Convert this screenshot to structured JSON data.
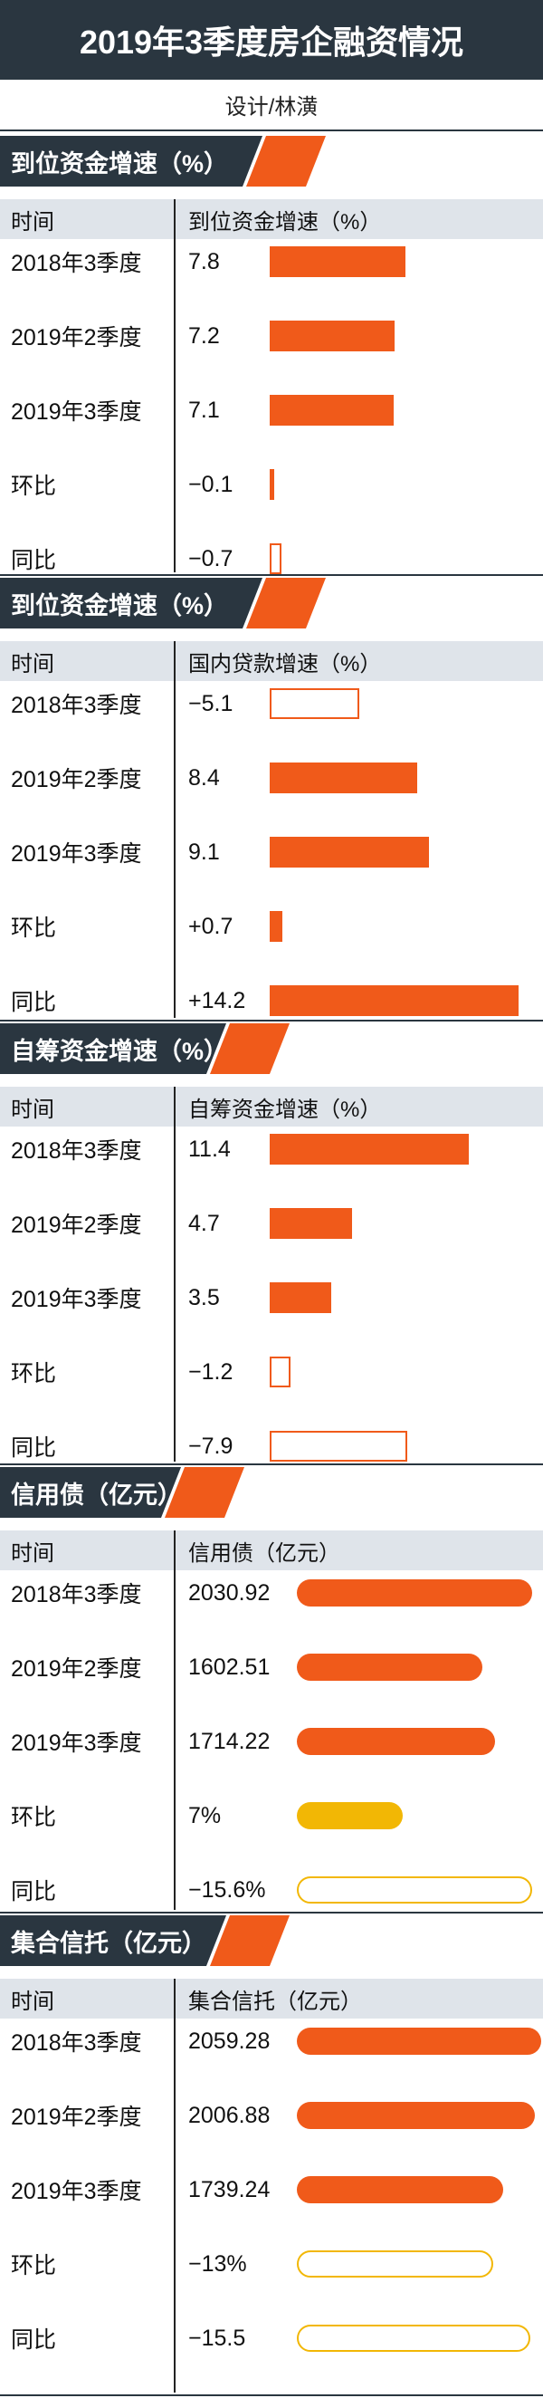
{
  "title": "2019年3季度房企融资情况",
  "designer": "设计/林潢",
  "colors": {
    "header_dark": "#2a3640",
    "accent_orange": "#f05a1a",
    "accent_yellow": "#f2b705",
    "col_header_bg": "#dfe4ea"
  },
  "chart_data": [
    {
      "type": "bar",
      "title": "到位资金增速（%）",
      "col_time": "时间",
      "col_value": "到位资金增速（%）",
      "rows": [
        {
          "label": "2018年3季度",
          "value_text": "7.8",
          "value": 7.8,
          "style": "solid-orange"
        },
        {
          "label": "2019年2季度",
          "value_text": "7.2",
          "value": 7.2,
          "style": "solid-orange"
        },
        {
          "label": "2019年3季度",
          "value_text": "7.1",
          "value": 7.1,
          "style": "solid-orange"
        },
        {
          "label": "环比",
          "value_text": "−0.1",
          "value": -0.1,
          "style": "solid-orange"
        },
        {
          "label": "同比",
          "value_text": "−0.7",
          "value": -0.7,
          "style": "outline-orange"
        }
      ]
    },
    {
      "type": "bar",
      "title": "到位资金增速（%）",
      "col_time": "时间",
      "col_value": "国内贷款增速（%）",
      "rows": [
        {
          "label": "2018年3季度",
          "value_text": "−5.1",
          "value": -5.1,
          "style": "outline-orange"
        },
        {
          "label": "2019年2季度",
          "value_text": "8.4",
          "value": 8.4,
          "style": "solid-orange"
        },
        {
          "label": "2019年3季度",
          "value_text": "9.1",
          "value": 9.1,
          "style": "solid-orange"
        },
        {
          "label": "环比",
          "value_text": "+0.7",
          "value": 0.7,
          "style": "solid-orange"
        },
        {
          "label": "同比",
          "value_text": "+14.2",
          "value": 14.2,
          "style": "solid-orange"
        }
      ]
    },
    {
      "type": "bar",
      "title": "自筹资金增速（%）",
      "col_time": "时间",
      "col_value": "自筹资金增速（%）",
      "rows": [
        {
          "label": "2018年3季度",
          "value_text": "11.4",
          "value": 11.4,
          "style": "solid-orange"
        },
        {
          "label": "2019年2季度",
          "value_text": "4.7",
          "value": 4.7,
          "style": "solid-orange"
        },
        {
          "label": "2019年3季度",
          "value_text": "3.5",
          "value": 3.5,
          "style": "solid-orange"
        },
        {
          "label": "环比",
          "value_text": "−1.2",
          "value": -1.2,
          "style": "outline-orange"
        },
        {
          "label": "同比",
          "value_text": "−7.9",
          "value": -7.9,
          "style": "outline-orange"
        }
      ]
    },
    {
      "type": "bar",
      "title": "信用债（亿元）",
      "col_time": "时间",
      "col_value": "信用债（亿元）",
      "rows": [
        {
          "label": "2018年3季度",
          "value_text": "2030.92",
          "value": 2030.92,
          "style": "pill-orange"
        },
        {
          "label": "2019年2季度",
          "value_text": "1602.51",
          "value": 1602.51,
          "style": "pill-orange"
        },
        {
          "label": "2019年3季度",
          "value_text": "1714.22",
          "value": 1714.22,
          "style": "pill-orange"
        },
        {
          "label": "环比",
          "value_text": "7%",
          "value": 7,
          "style": "pill-yellow"
        },
        {
          "label": "同比",
          "value_text": "−15.6%",
          "value": -15.6,
          "style": "pill-outline-yellow"
        }
      ]
    },
    {
      "type": "bar",
      "title": "集合信托（亿元）",
      "col_time": "时间",
      "col_value": "集合信托（亿元）",
      "rows": [
        {
          "label": "2018年3季度",
          "value_text": "2059.28",
          "value": 2059.28,
          "style": "pill-orange"
        },
        {
          "label": "2019年2季度",
          "value_text": "2006.88",
          "value": 2006.88,
          "style": "pill-orange"
        },
        {
          "label": "2019年3季度",
          "value_text": "1739.24",
          "value": 1739.24,
          "style": "pill-orange"
        },
        {
          "label": "环比",
          "value_text": "−13%",
          "value": -13,
          "style": "pill-outline-yellow"
        },
        {
          "label": "同比",
          "value_text": "−15.5",
          "value": -15.5,
          "style": "pill-outline-yellow"
        }
      ]
    }
  ]
}
